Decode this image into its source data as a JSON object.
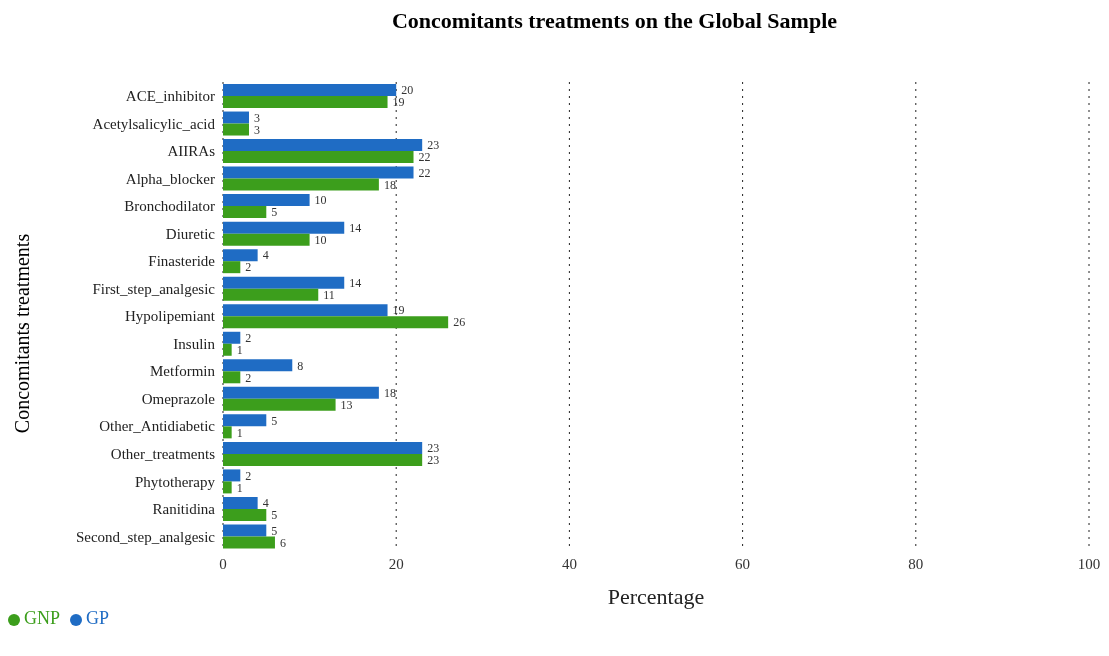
{
  "chart_data": {
    "type": "bar",
    "orientation": "horizontal",
    "title": "Concomitants treatments on the Global Sample",
    "xlabel": "Percentage",
    "ylabel": "Concomitants treatments",
    "categories": [
      "ACE_inhibitor",
      "Acetylsalicylic_acid",
      "AIIRAs",
      "Alpha_blocker",
      "Bronchodilator",
      "Diuretic",
      "Finasteride",
      "First_step_analgesic",
      "Hypolipemiant",
      "Insulin",
      "Metformin",
      "Omeprazole",
      "Other_Antidiabetic",
      "Other_treatments",
      "Phytotherapy",
      "Ranitidina",
      "Second_step_analgesic"
    ],
    "series": [
      {
        "name": "GP",
        "color": "#1f6cc4",
        "values": [
          20,
          3,
          23,
          22,
          10,
          14,
          4,
          14,
          19,
          2,
          8,
          18,
          5,
          23,
          2,
          4,
          5
        ]
      },
      {
        "name": "GNP",
        "color": "#3c9e1c",
        "values": [
          19,
          3,
          22,
          18,
          5,
          10,
          2,
          11,
          26,
          1,
          2,
          13,
          1,
          23,
          1,
          5,
          6
        ]
      }
    ],
    "xlim": [
      0,
      100
    ],
    "xticks": [
      0,
      20,
      40,
      60,
      80,
      100
    ],
    "grid": "x",
    "legend": "bottom left",
    "data_labels": true
  }
}
